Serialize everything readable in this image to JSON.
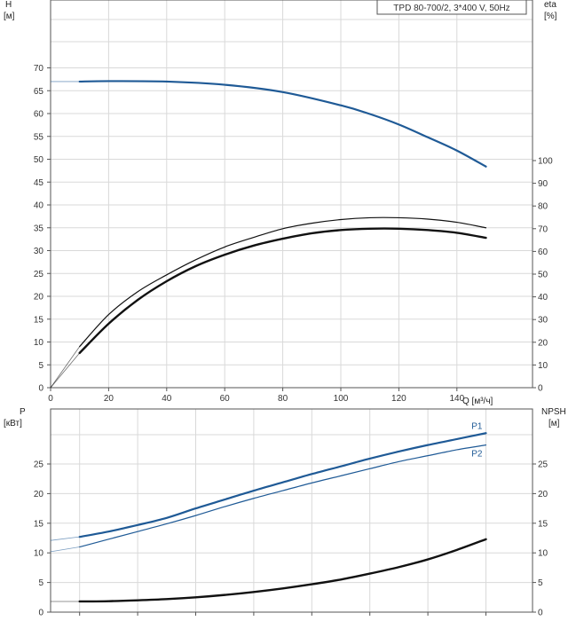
{
  "colors": {
    "blue": "#1f5a96",
    "black": "#111111",
    "grid": "#d9d9d9"
  },
  "chart_data": [
    {
      "type": "line",
      "title": "TPD 80-700/2, 3*400 V, 50Hz",
      "left_axis": {
        "label": "H",
        "unit": "[м]",
        "ticks": [
          0,
          5,
          10,
          15,
          20,
          25,
          30,
          35,
          40,
          45,
          50,
          55,
          60,
          65,
          70
        ],
        "range": [
          0,
          85
        ]
      },
      "right_axis": {
        "label": "eta",
        "unit": "[%]",
        "ticks": [
          0,
          10,
          20,
          30,
          40,
          50,
          60,
          70,
          80,
          90,
          100
        ],
        "range": [
          0,
          100
        ]
      },
      "x_axis": {
        "label": "Q [м³/ч]",
        "ticks": [
          0,
          20,
          40,
          60,
          80,
          100,
          120,
          140
        ],
        "range": [
          0,
          168
        ]
      },
      "grid": true,
      "series": [
        {
          "color": "#1f5a96",
          "axis": "left",
          "width": 2.2,
          "dashed_start": true,
          "x": [
            0,
            10,
            20,
            40,
            60,
            80,
            100,
            110,
            120,
            130,
            140,
            150
          ],
          "y": [
            67,
            67,
            67.1,
            67,
            66.3,
            64.7,
            61.8,
            59.9,
            57.6,
            54.8,
            51.9,
            48.4
          ]
        },
        {
          "color": "#111111",
          "axis": "left",
          "width": 1.2,
          "thin_start": true,
          "x": [
            0,
            10,
            20,
            30,
            40,
            50,
            60,
            70,
            80,
            90,
            100,
            110,
            120,
            130,
            140,
            150
          ],
          "y": [
            0,
            9,
            16,
            21,
            24.7,
            28,
            30.8,
            32.9,
            34.8,
            36,
            36.8,
            37.2,
            37.2,
            36.9,
            36.2,
            35
          ]
        },
        {
          "color": "#111111",
          "axis": "left",
          "width": 2.4,
          "thin_start": true,
          "x": [
            0,
            10,
            20,
            30,
            40,
            50,
            60,
            70,
            80,
            90,
            100,
            110,
            120,
            130,
            140,
            150
          ],
          "y": [
            0,
            7.6,
            14,
            19.2,
            23.3,
            26.6,
            29.1,
            31.1,
            32.6,
            33.8,
            34.5,
            34.8,
            34.8,
            34.5,
            33.9,
            32.8
          ]
        }
      ]
    },
    {
      "type": "line",
      "left_axis": {
        "label": "P",
        "unit": "[кВт]",
        "ticks": [
          0,
          5,
          10,
          15,
          20,
          25
        ],
        "range": [
          0,
          31
        ]
      },
      "right_axis": {
        "label": "NPSH",
        "unit": "[м]",
        "ticks": [
          0,
          5,
          10,
          15,
          20,
          25
        ],
        "range": [
          0,
          31
        ]
      },
      "grid": true,
      "series": [
        {
          "name": "P1",
          "color": "#1f5a96",
          "axis": "left",
          "width": 2.2,
          "thin_start": true,
          "x": [
            0,
            10,
            20,
            30,
            40,
            50,
            60,
            70,
            80,
            90,
            100,
            110,
            120,
            130,
            140,
            150
          ],
          "y": [
            12.1,
            12.7,
            13.6,
            14.7,
            15.9,
            17.5,
            19,
            20.5,
            21.9,
            23.3,
            24.6,
            25.9,
            27.1,
            28.2,
            29.2,
            30.2
          ]
        },
        {
          "name": "P2",
          "color": "#1f5a96",
          "axis": "left",
          "width": 1.2,
          "thin_start": true,
          "x": [
            0,
            10,
            20,
            30,
            40,
            50,
            60,
            70,
            80,
            90,
            100,
            110,
            120,
            130,
            140,
            150
          ],
          "y": [
            10.2,
            11,
            12.3,
            13.6,
            14.9,
            16.3,
            17.8,
            19.2,
            20.5,
            21.8,
            23,
            24.2,
            25.4,
            26.4,
            27.4,
            28.2
          ]
        },
        {
          "color": "#111111",
          "axis": "right",
          "width": 2.4,
          "thin_start": true,
          "x": [
            0,
            10,
            20,
            30,
            40,
            50,
            60,
            70,
            80,
            90,
            100,
            110,
            120,
            130,
            140,
            150
          ],
          "y": [
            1.8,
            1.8,
            1.85,
            2,
            2.2,
            2.5,
            2.9,
            3.4,
            4,
            4.7,
            5.5,
            6.5,
            7.6,
            8.9,
            10.5,
            12.3
          ]
        }
      ]
    }
  ]
}
